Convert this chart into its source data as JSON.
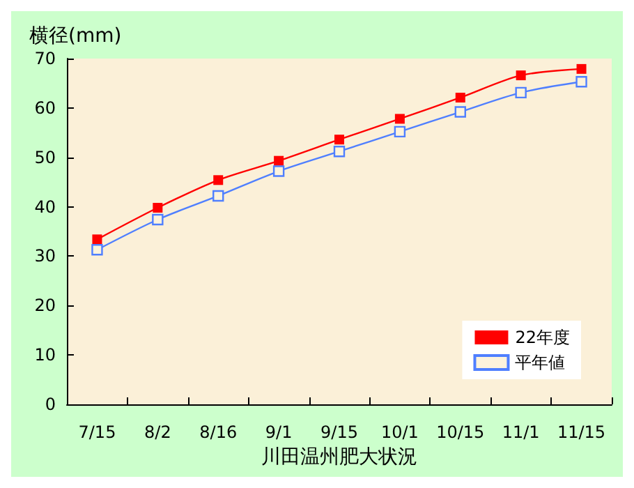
{
  "chart_data": {
    "type": "line",
    "ylabel": "横径(mm)",
    "xlabel": "川田温州肥大状況",
    "categories": [
      "7/15",
      "8/2",
      "8/16",
      "9/1",
      "9/15",
      "10/1",
      "10/15",
      "11/1",
      "11/15"
    ],
    "series": [
      {
        "name": "22年度",
        "color": "#ff0000",
        "values": [
          33.4,
          39.8,
          45.4,
          49.3,
          53.6,
          57.8,
          62.1,
          66.6,
          67.9
        ]
      },
      {
        "name": "平年値",
        "color": "#4f7fff",
        "values": [
          31.3,
          37.4,
          42.2,
          47.2,
          51.2,
          55.2,
          59.2,
          63.1,
          65.3
        ]
      }
    ],
    "ylim": [
      0,
      70
    ],
    "yticks": [
      0,
      10,
      20,
      30,
      40,
      50,
      60,
      70
    ],
    "grid": false,
    "legend": "bottom right",
    "marker": "square",
    "line_style": "solid"
  }
}
